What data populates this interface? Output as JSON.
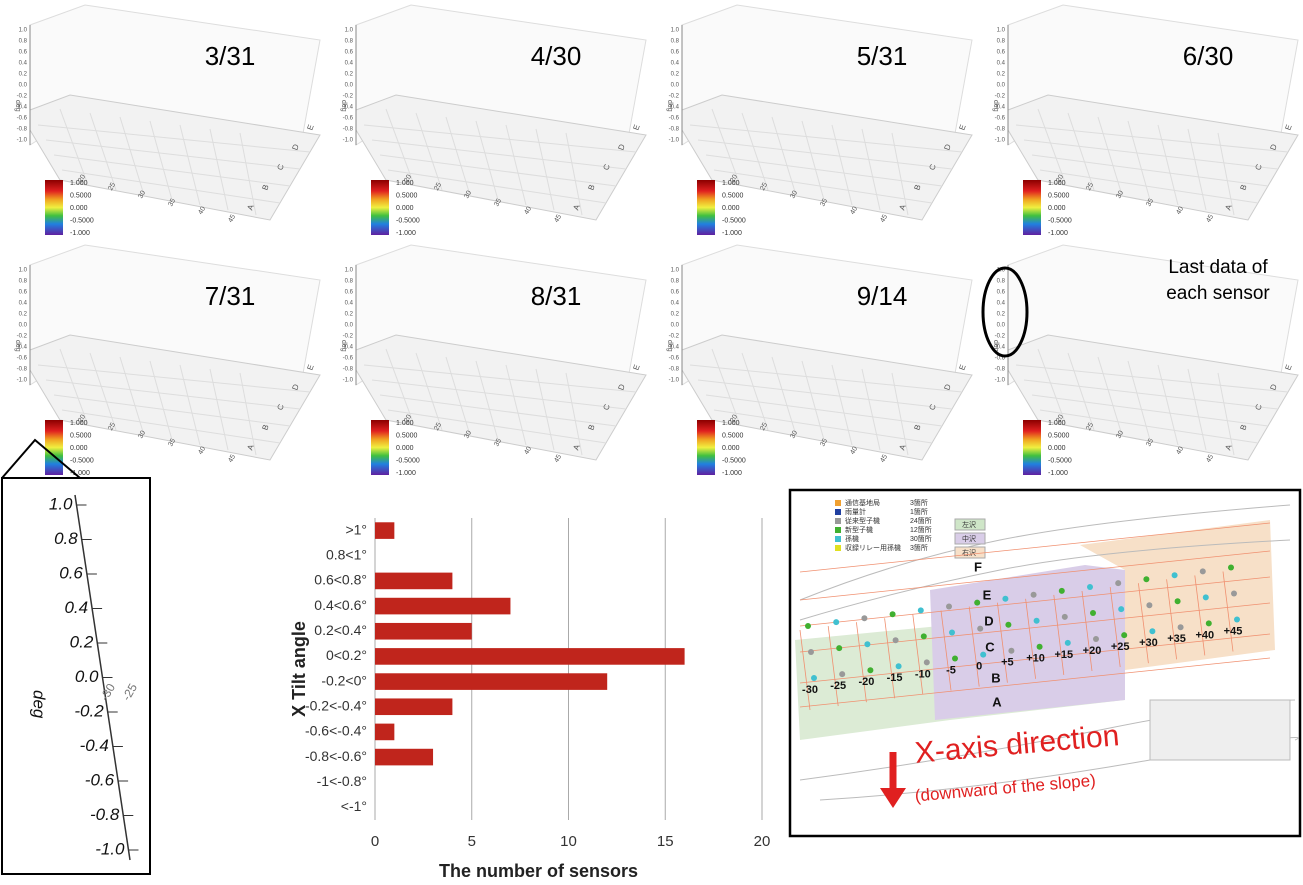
{
  "panels": [
    {
      "label": [
        "3/31"
      ]
    },
    {
      "label": [
        "4/30"
      ]
    },
    {
      "label": [
        "5/31"
      ]
    },
    {
      "label": [
        "6/30"
      ]
    },
    {
      "label": [
        "7/31"
      ]
    },
    {
      "label": [
        "8/31"
      ]
    },
    {
      "label": [
        "9/14"
      ]
    },
    {
      "label": [
        "Last data of",
        "each sensor"
      ]
    }
  ],
  "panel_axis": {
    "label": "deg",
    "ticks": [
      "1.0",
      "0.8",
      "0.6",
      "0.4",
      "0.2",
      "0.0",
      "-0.2",
      "-0.4",
      "-0.6",
      "-0.8",
      "-1.0"
    ],
    "rows": [
      "A",
      "B",
      "C",
      "D",
      "E"
    ],
    "positions": [
      "45",
      "40",
      "35",
      "30",
      "25",
      "20"
    ]
  },
  "colorbar": {
    "labels": [
      "1.000",
      "0.5000",
      "0.000",
      "-0.5000",
      "-1.000"
    ]
  },
  "zoom_inset": {
    "axis_label": "deg",
    "ticks": [
      "1.0",
      "0.8",
      "0.6",
      "0.4",
      "0.2",
      "0.0",
      "-0.2",
      "-0.4",
      "-0.6",
      "-0.8",
      "-1.0"
    ],
    "side_ticks": [
      "-30",
      "-25"
    ]
  },
  "chart_data": {
    "type": "bar",
    "orientation": "horizontal",
    "categories": [
      ">1°",
      "0.8<1°",
      "0.6<0.8°",
      "0.4<0.6°",
      "0.2<0.4°",
      "0<0.2°",
      "-0.2<0°",
      "-0.2<-0.4°",
      "-0.6<-0.4°",
      "-0.8<-0.6°",
      "-1<-0.8°",
      "<-1°"
    ],
    "values": [
      1,
      0,
      4,
      7,
      5,
      16,
      12,
      4,
      1,
      3,
      0,
      0
    ],
    "color": "#c0251c",
    "xlim": [
      0,
      20
    ],
    "xticks": [
      0,
      5,
      10,
      15,
      20
    ],
    "grid": true,
    "x_label": "The number of sensors",
    "y_label": "X Tilt angle"
  },
  "map": {
    "legend": [
      {
        "text": "通信基地局",
        "count": "3箇所",
        "color": "#f0a030"
      },
      {
        "text": "雨量計",
        "count": "1箇所",
        "color": "#2040a0"
      },
      {
        "text": "従来型子機",
        "count": "24箇所",
        "color": "#999999"
      },
      {
        "text": "新型子機",
        "count": "12箇所",
        "color": "#40b030"
      },
      {
        "text": "孫機",
        "count": "30箇所",
        "color": "#40c0d0"
      },
      {
        "text": "収録リレー用孫機",
        "count": "3箇所",
        "color": "#e0e020"
      }
    ],
    "zones": [
      "左沢",
      "中沢",
      "右沢"
    ],
    "rows": [
      "A",
      "B",
      "C",
      "D",
      "E",
      "F"
    ],
    "positions": [
      "-30",
      "-25",
      "-20",
      "-15",
      "-10",
      "-5",
      "0",
      "+5",
      "+10",
      "+15",
      "+20",
      "+25",
      "+30",
      "+35",
      "+40",
      "+45"
    ],
    "arrow_title": "X-axis direction",
    "arrow_subtitle": "(downward of the slope)"
  }
}
